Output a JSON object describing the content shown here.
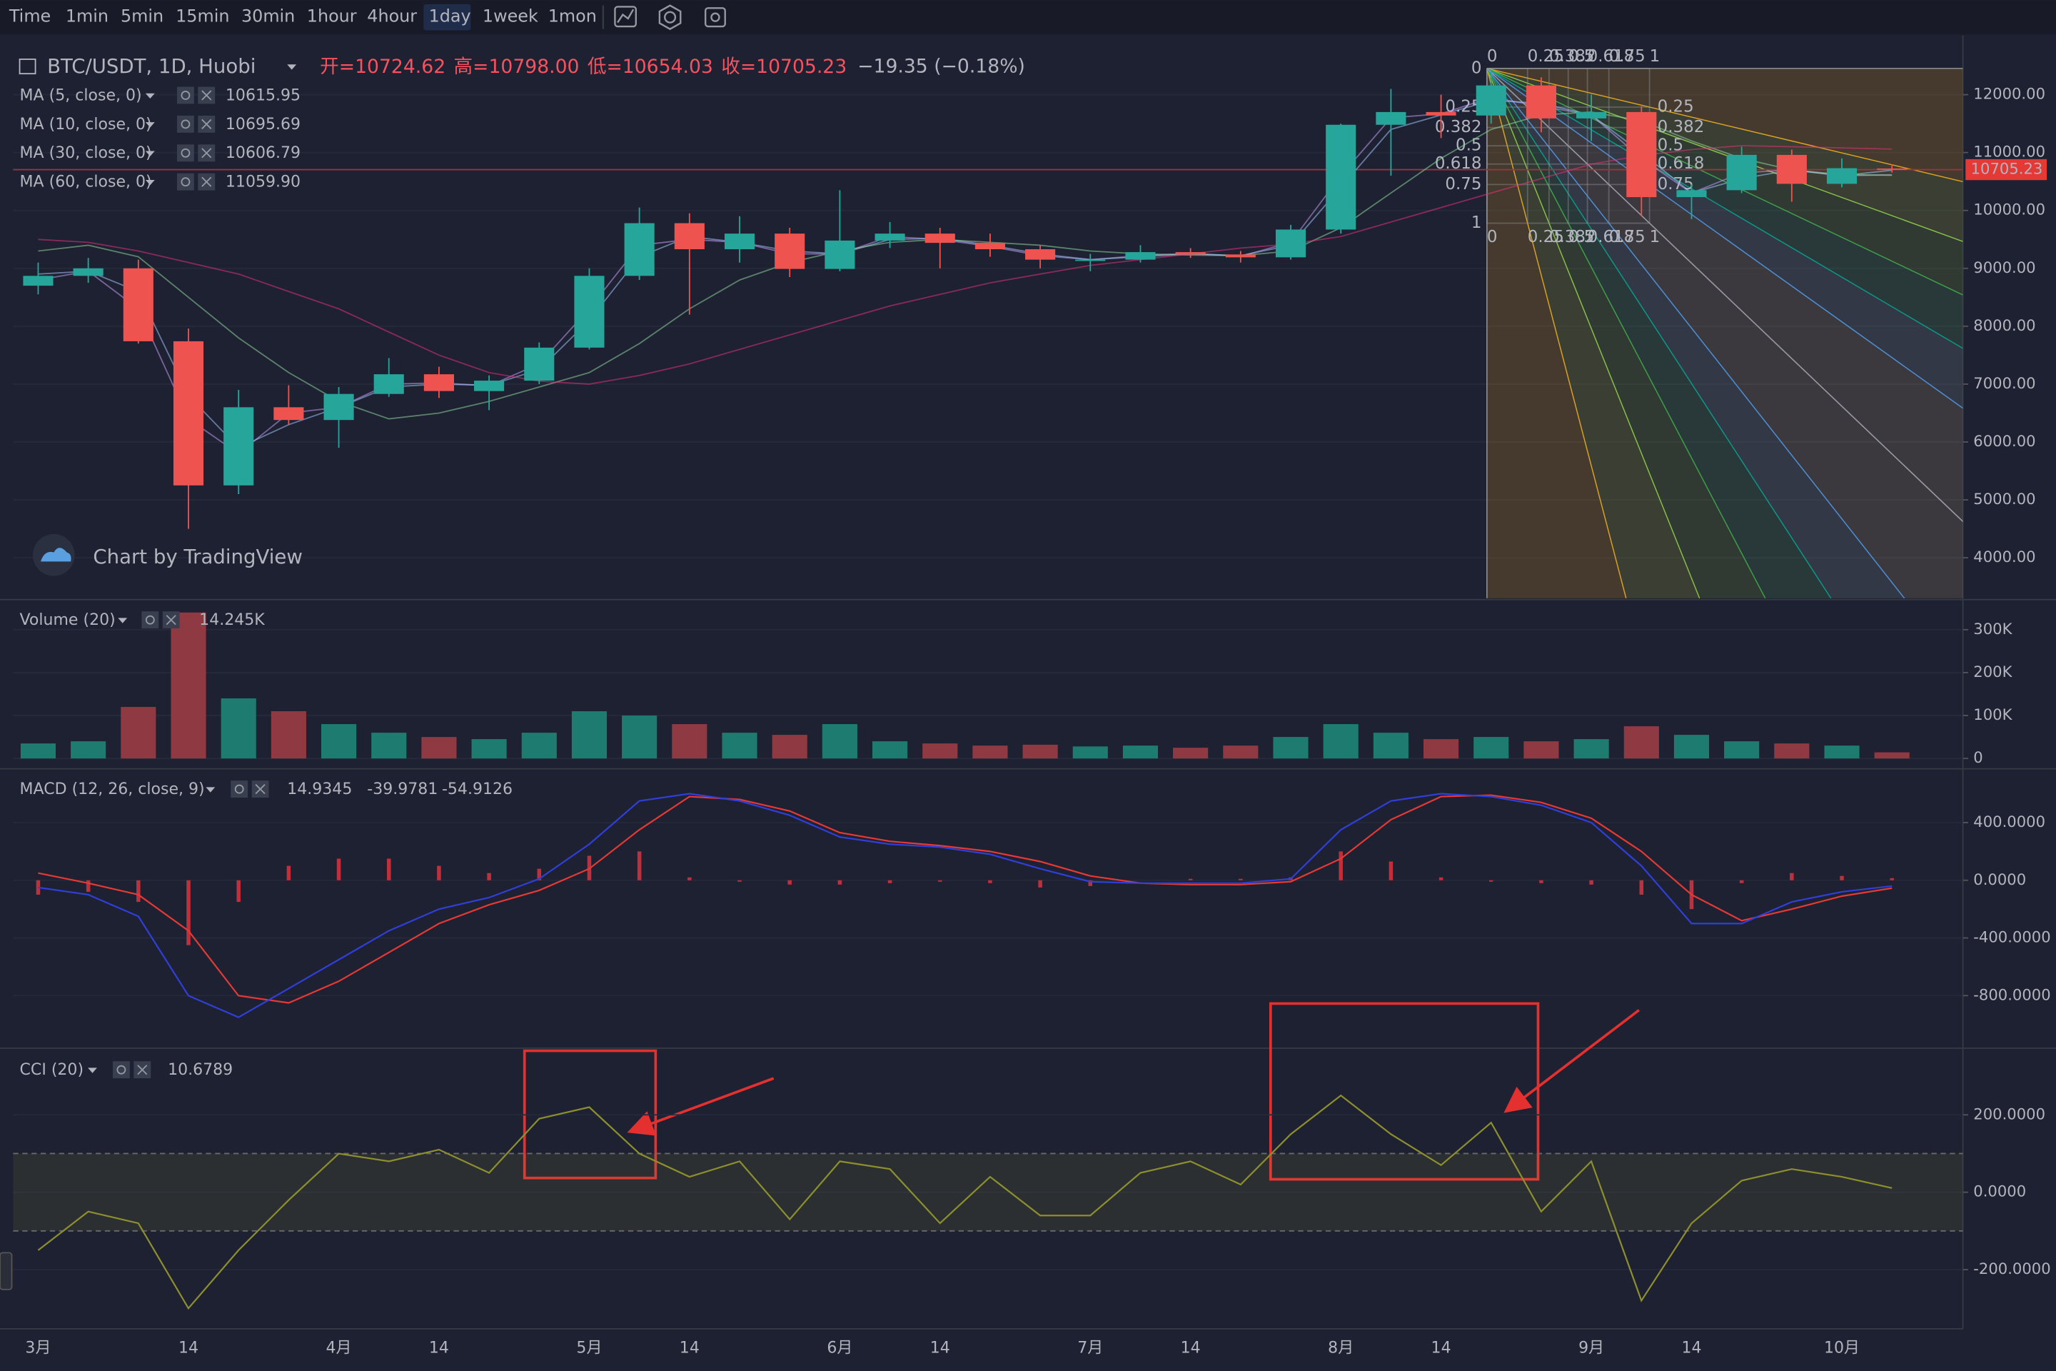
{
  "toolbar": {
    "items": [
      "Time",
      "1min",
      "5min",
      "15min",
      "30min",
      "1hour",
      "4hour",
      "1day",
      "1week",
      "1mon"
    ],
    "active": "1day"
  },
  "watermark": "Chart by TradingView",
  "chart_data": [
    {
      "type": "candlestick",
      "legend": {
        "symbol": "BTC/USDT, 1D, Huobi",
        "fields": [
          {
            "label": "开=",
            "value": "10724.62"
          },
          {
            "label": "高=",
            "value": "10798.00"
          },
          {
            "label": "低=",
            "value": "10654.03"
          },
          {
            "label": "收=",
            "value": "10705.23"
          }
        ],
        "change": "−19.35 (−0.18%)"
      },
      "categories": [
        "3月",
        null,
        null,
        "14",
        null,
        null,
        "4月",
        null,
        "14",
        null,
        null,
        "5月",
        null,
        "14",
        null,
        null,
        "6月",
        null,
        "14",
        null,
        null,
        "7月",
        null,
        "14",
        null,
        null,
        "8月",
        null,
        "14",
        null,
        null,
        "9月",
        null,
        "14",
        null,
        null,
        "10月",
        null
      ],
      "up_color": "#26a69a",
      "down_color": "#ef5350",
      "ohlc": [
        [
          8700,
          9100,
          8550,
          8870
        ],
        [
          8870,
          9180,
          8750,
          9000
        ],
        [
          9000,
          9150,
          7700,
          7740
        ],
        [
          7740,
          7960,
          4500,
          5250
        ],
        [
          5250,
          6900,
          5100,
          6600
        ],
        [
          6600,
          6980,
          6300,
          6380
        ],
        [
          6380,
          6950,
          5900,
          6830
        ],
        [
          6830,
          7450,
          6780,
          7170
        ],
        [
          7170,
          7300,
          6760,
          6880
        ],
        [
          6880,
          7150,
          6550,
          7060
        ],
        [
          7060,
          7720,
          7000,
          7630
        ],
        [
          7630,
          9000,
          7600,
          8870
        ],
        [
          8870,
          10050,
          8800,
          9780
        ],
        [
          9780,
          9950,
          8200,
          9330
        ],
        [
          9330,
          9900,
          9100,
          9600
        ],
        [
          9600,
          9700,
          8850,
          8990
        ],
        [
          8990,
          10350,
          8950,
          9480
        ],
        [
          9480,
          9800,
          9350,
          9600
        ],
        [
          9600,
          9700,
          9000,
          9440
        ],
        [
          9440,
          9600,
          9200,
          9330
        ],
        [
          9330,
          9400,
          9000,
          9150
        ],
        [
          9150,
          9250,
          8950,
          9150
        ],
        [
          9150,
          9400,
          9100,
          9280
        ],
        [
          9280,
          9350,
          9180,
          9240
        ],
        [
          9240,
          9300,
          9100,
          9190
        ],
        [
          9190,
          9750,
          9150,
          9670
        ],
        [
          9670,
          11500,
          9600,
          11480
        ],
        [
          11480,
          12100,
          10600,
          11700
        ],
        [
          11700,
          12000,
          11250,
          11640
        ],
        [
          11640,
          12400,
          11500,
          12160
        ],
        [
          12160,
          12300,
          11350,
          11590
        ],
        [
          11590,
          12000,
          11200,
          11700
        ],
        [
          11700,
          11800,
          9900,
          10230
        ],
        [
          10230,
          10450,
          9850,
          10350
        ],
        [
          10350,
          11100,
          10300,
          10960
        ],
        [
          10960,
          11050,
          10150,
          10460
        ],
        [
          10460,
          10900,
          10400,
          10730
        ],
        [
          10724.62,
          10798,
          10654.03,
          10705.23
        ]
      ],
      "series": [
        {
          "name": "MA (5, close, 0)",
          "color": "#c39bf0",
          "legend_value": "10615.95",
          "values": [
            8800,
            8950,
            8300,
            6400,
            5800,
            6500,
            6600,
            7000,
            7020,
            6970,
            7350,
            8300,
            9400,
            9500,
            9450,
            9250,
            9250,
            9550,
            9500,
            9380,
            9220,
            9150,
            9220,
            9260,
            9210,
            9450,
            10600,
            11600,
            11670,
            11950,
            11800,
            11650,
            10900,
            10300,
            10650,
            10700,
            10600,
            10615.95
          ]
        },
        {
          "name": "MA (10, close, 0)",
          "color": "#9fc3f5",
          "legend_value": "10695.69",
          "values": [
            8900,
            8950,
            8600,
            6800,
            5900,
            6300,
            6600,
            6950,
            7000,
            6980,
            7250,
            8100,
            9200,
            9550,
            9450,
            9300,
            9250,
            9500,
            9520,
            9400,
            9250,
            9150,
            9200,
            9250,
            9220,
            9400,
            10400,
            11400,
            11650,
            11900,
            11850,
            11650,
            11000,
            10300,
            10550,
            10700,
            10600,
            10695.69
          ]
        },
        {
          "name": "MA (30, close, 0)",
          "color": "#8ed49a",
          "legend_value": "10606.79",
          "values": [
            9300,
            9400,
            9200,
            8500,
            7800,
            7200,
            6700,
            6400,
            6500,
            6700,
            6950,
            7200,
            7700,
            8300,
            8800,
            9100,
            9300,
            9450,
            9500,
            9450,
            9400,
            9300,
            9250,
            9230,
            9220,
            9300,
            9700,
            10300,
            10900,
            11400,
            11650,
            11700,
            11550,
            11200,
            10900,
            10700,
            10620,
            10606.79
          ]
        },
        {
          "name": "MA (60, close, 0)",
          "color": "#e0337a",
          "legend_value": "11059.90",
          "values": [
            9500,
            9450,
            9300,
            9100,
            8900,
            8600,
            8300,
            7900,
            7500,
            7200,
            7050,
            7000,
            7150,
            7350,
            7600,
            7850,
            8100,
            8350,
            8550,
            8750,
            8900,
            9050,
            9150,
            9250,
            9350,
            9420,
            9550,
            9800,
            10050,
            10300,
            10550,
            10800,
            10950,
            11050,
            11120,
            11100,
            11080,
            11059.9
          ]
        }
      ],
      "last_price": 10705.23,
      "ylim": [
        3300,
        13020
      ],
      "yticks": [
        {
          "value": 4000,
          "label": "4000.00"
        },
        {
          "value": 5000,
          "label": "5000.00"
        },
        {
          "value": 6000,
          "label": "6000.00"
        },
        {
          "value": 7000,
          "label": "7000.00"
        },
        {
          "value": 8000,
          "label": "8000.00"
        },
        {
          "value": 9000,
          "label": "9000.00"
        },
        {
          "value": 10000,
          "label": "10000.00"
        },
        {
          "value": 11000,
          "label": "11000.00"
        },
        {
          "value": 12000,
          "label": "12000.00"
        }
      ],
      "fib_fan": {
        "levels": [
          0,
          0.25,
          0.382,
          0.5,
          0.618,
          0.75,
          1
        ],
        "colors": [
          "#9598a1",
          "#e0a020",
          "#8bc34a",
          "#43a047",
          "#089981",
          "#4a90d9",
          "#9598a1"
        ]
      }
    },
    {
      "type": "bar",
      "title": "Volume (20)",
      "legend_value": "14.245K",
      "up_color": "#1e7b70",
      "down_color": "#8f3a42",
      "values": [
        35000,
        40000,
        120000,
        340000,
        140000,
        110000,
        80000,
        60000,
        50000,
        45000,
        60000,
        110000,
        100000,
        80000,
        60000,
        55000,
        80000,
        40000,
        35000,
        30000,
        32000,
        28000,
        30000,
        25000,
        30000,
        50000,
        80000,
        60000,
        45000,
        50000,
        40000,
        45000,
        75000,
        55000,
        40000,
        35000,
        30000,
        14245
      ],
      "ylim": [
        -21000,
        367000
      ],
      "yticks": [
        0,
        {
          "value": 100000,
          "label": "100K"
        },
        {
          "value": 200000,
          "label": "200K"
        },
        {
          "value": 300000,
          "label": "300K"
        }
      ]
    },
    {
      "type": "macd",
      "title": "MACD (12, 26, close, 9)",
      "histogram": {
        "color": "#c0303c",
        "values": [
          -100,
          -80,
          -150,
          -450,
          -150,
          100,
          150,
          150,
          100,
          50,
          80,
          170,
          200,
          20,
          -10,
          -30,
          -30,
          -20,
          -10,
          -20,
          -50,
          -40,
          0,
          10,
          10,
          20,
          200,
          130,
          20,
          -10,
          -20,
          -30,
          -100,
          -200,
          -20,
          50,
          30,
          14.9345
        ]
      },
      "macd": {
        "color": "#2f3fd8",
        "values": [
          -50,
          -100,
          -250,
          -800,
          -950,
          -750,
          -550,
          -350,
          -200,
          -120,
          10,
          250,
          550,
          600,
          550,
          450,
          300,
          250,
          230,
          180,
          80,
          -10,
          -20,
          -20,
          -20,
          10,
          350,
          550,
          600,
          580,
          520,
          400,
          100,
          -300,
          -300,
          -150,
          -80,
          -39.9781
        ]
      },
      "signal": {
        "color": "#e53935",
        "values": [
          50,
          -20,
          -100,
          -350,
          -800,
          -850,
          -700,
          -500,
          -300,
          -170,
          -70,
          80,
          350,
          580,
          560,
          480,
          330,
          270,
          240,
          200,
          130,
          30,
          -20,
          -30,
          -30,
          -10,
          150,
          420,
          580,
          590,
          540,
          430,
          200,
          -100,
          -280,
          -200,
          -110,
          -54.9126
        ]
      },
      "ylim": [
        -1155,
        764
      ],
      "yticks": [
        {
          "value": -800,
          "label": "-800.0000"
        },
        {
          "value": -400,
          "label": "-400.0000"
        },
        {
          "value": 0,
          "label": "0.0000"
        },
        {
          "value": 400,
          "label": "400.0000"
        }
      ]
    },
    {
      "type": "line",
      "title": "CCI (20)",
      "color": "#8d8f2e",
      "values": [
        -150,
        -50,
        -80,
        -300,
        -150,
        -20,
        100,
        80,
        110,
        50,
        190,
        220,
        100,
        40,
        80,
        -70,
        80,
        60,
        -80,
        40,
        -60,
        -60,
        50,
        80,
        20,
        150,
        250,
        150,
        70,
        180,
        -50,
        80,
        -280,
        -80,
        30,
        60,
        40,
        10.6789
      ],
      "band": [
        -100,
        100
      ],
      "ylim": [
        -353,
        369
      ],
      "yticks": [
        {
          "value": -200,
          "label": "-200.0000"
        },
        {
          "value": 0,
          "label": "0.0000"
        },
        {
          "value": 200,
          "label": "200.0000"
        }
      ]
    }
  ]
}
